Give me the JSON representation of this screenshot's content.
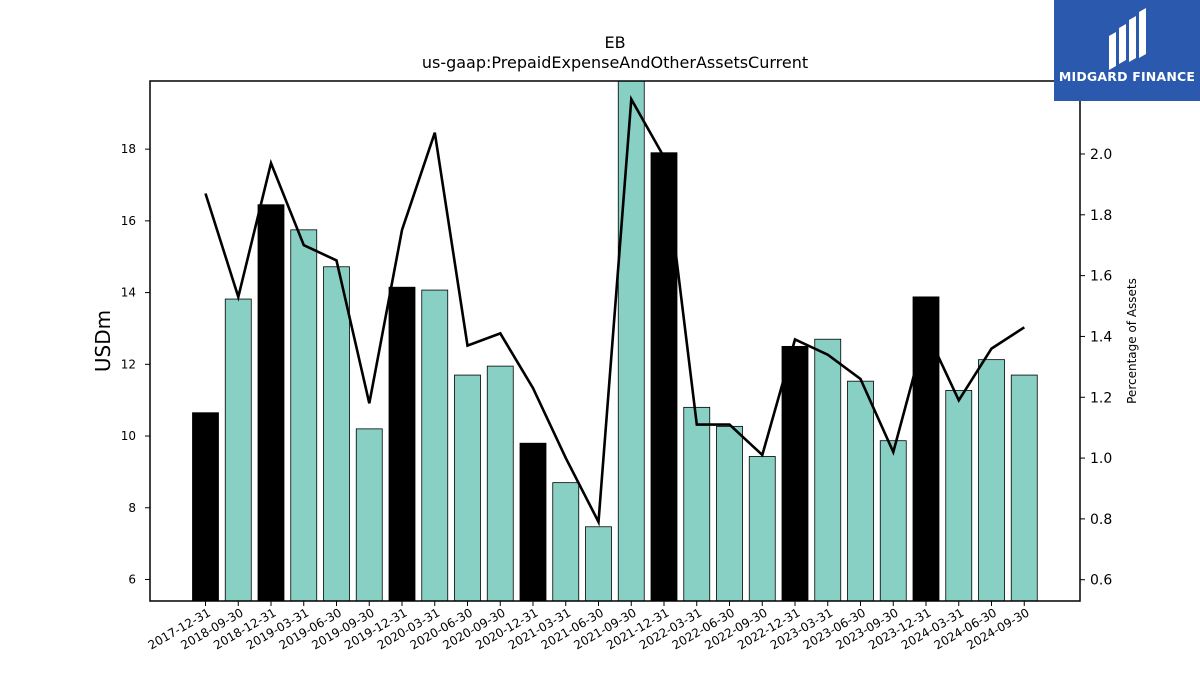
{
  "chart_data": {
    "type": "bar",
    "title": "EB",
    "subtitle": "us-gaap:PrepaidExpenseAndOtherAssetsCurrent",
    "ylabel": "USDm",
    "ylabel_right": "Percentage of Assets",
    "ylim": [
      5.4,
      19.9
    ],
    "ylim_right": [
      0.53,
      2.24
    ],
    "yticks": [
      6,
      8,
      10,
      12,
      14,
      16,
      18
    ],
    "yticks_right": [
      0.6,
      0.8,
      1.0,
      1.2,
      1.4,
      1.6,
      1.8,
      2.0
    ],
    "categories": [
      "2017-12-31",
      "2018-09-30",
      "2018-12-31",
      "2019-03-31",
      "2019-06-30",
      "2019-09-30",
      "2019-12-31",
      "2020-03-31",
      "2020-06-30",
      "2020-09-30",
      "2020-12-31",
      "2021-03-31",
      "2021-06-30",
      "2021-09-30",
      "2021-12-31",
      "2022-03-31",
      "2022-06-30",
      "2022-09-30",
      "2022-12-31",
      "2023-03-31",
      "2023-06-30",
      "2023-09-30",
      "2023-12-31",
      "2024-03-31",
      "2024-06-30",
      "2024-09-30"
    ],
    "series": [
      {
        "type": "bar",
        "values": [
          10.65,
          13.82,
          16.45,
          15.75,
          14.72,
          10.2,
          14.15,
          14.07,
          11.7,
          11.95,
          9.8,
          8.7,
          7.47,
          19.9,
          17.9,
          10.8,
          10.27,
          9.43,
          12.5,
          12.7,
          11.53,
          9.87,
          13.88,
          11.27,
          12.13,
          11.7
        ],
        "year_end": [
          true,
          false,
          true,
          false,
          false,
          false,
          true,
          false,
          false,
          false,
          true,
          false,
          false,
          false,
          true,
          false,
          false,
          false,
          true,
          false,
          false,
          false,
          true,
          false,
          false,
          false
        ]
      },
      {
        "type": "line",
        "axis": "right",
        "values": [
          1.87,
          1.53,
          1.97,
          1.7,
          1.65,
          1.18,
          1.75,
          2.07,
          1.37,
          1.41,
          1.23,
          1.0,
          0.79,
          2.18,
          1.99,
          1.11,
          1.11,
          1.01,
          1.39,
          1.34,
          1.26,
          1.02,
          1.42,
          1.19,
          1.36,
          1.43
        ]
      }
    ],
    "colors": {
      "year_end_bar": "#000000",
      "quarter_bar": "#88d0c4",
      "line": "#000000"
    },
    "grid": false,
    "legend": "none"
  },
  "logo": {
    "text": "MIDGARD FINANCE",
    "background": "#2a59ad"
  }
}
